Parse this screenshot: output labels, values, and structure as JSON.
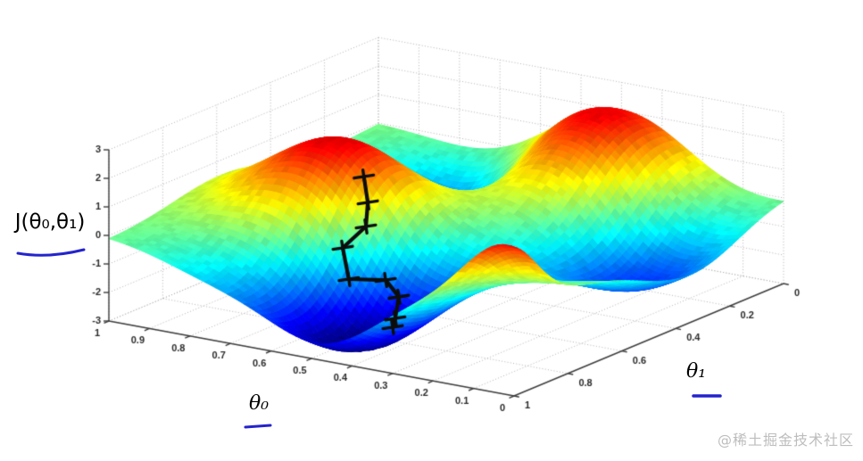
{
  "chart_data": {
    "type": "surface",
    "title": "",
    "z_axis_label": "J(θ₀,θ₁)",
    "x_axis_label": "θ₀",
    "y_axis_label": "θ₁",
    "colormap": "jet",
    "z_range": [
      -3,
      3
    ],
    "theta0_range": [
      0,
      1
    ],
    "theta1_range": [
      0,
      1
    ],
    "z_ticks": [
      3,
      2,
      1,
      0,
      -1,
      -2,
      -3
    ],
    "theta0_ticks": [
      1,
      0.9,
      0.8,
      0.7,
      0.6,
      0.5,
      0.4,
      0.3,
      0.2,
      0.1,
      0
    ],
    "theta1_ticks": [
      0,
      0.2,
      0.4,
      0.6,
      0.8,
      1
    ],
    "grid": {
      "theta0_step": 0.1,
      "theta1_step": 0.2,
      "z_step": 1
    },
    "surface_model": {
      "description": "Non-convex cost surface approximated as a sum of gaussian bumps; amplitude a at center (theta0,theta1) with spreads (sx,sy). Two red peaks, deep blue local minima.",
      "components": [
        {
          "a": 3.2,
          "theta0": 0.67,
          "theta1": 0.58,
          "sx": 0.17,
          "sy": 0.16
        },
        {
          "a": 3.1,
          "theta0": 0.41,
          "theta1": 0.13,
          "sx": 0.21,
          "sy": 0.18
        },
        {
          "a": -3.6,
          "theta0": 0.48,
          "theta1": 0.8,
          "sx": 0.14,
          "sy": 0.22
        },
        {
          "a": -2.6,
          "theta0": 0.14,
          "theta1": 0.31,
          "sx": 0.14,
          "sy": 0.2
        },
        {
          "a": -3.0,
          "theta0": 0.67,
          "theta1": 0.22,
          "sx": 0.15,
          "sy": 0.15
        },
        {
          "a": 2.3,
          "theta0": 0.02,
          "theta1": 1.02,
          "sx": 0.1,
          "sy": 0.1
        },
        {
          "a": -0.8,
          "theta0": 0.75,
          "theta1": 1.0,
          "sx": 0.13,
          "sy": 0.15
        }
      ]
    },
    "gradient_descent_path": [
      {
        "theta0": 0.501,
        "theta1": 0.804,
        "j": 2.6
      },
      {
        "theta0": 0.482,
        "theta1": 0.818,
        "j": 1.8
      },
      {
        "theta0": 0.48,
        "theta1": 0.828,
        "j": 1.0
      },
      {
        "theta0": 0.514,
        "theta1": 0.863,
        "j": 0.3
      },
      {
        "theta0": 0.469,
        "theta1": 0.908,
        "j": -0.5
      },
      {
        "theta0": 0.414,
        "theta1": 0.854,
        "j": -0.6
      },
      {
        "theta0": 0.416,
        "theta1": 0.802,
        "j": -1.4
      },
      {
        "theta0": 0.451,
        "theta1": 0.763,
        "j": -2.4
      },
      {
        "theta0": 0.466,
        "theta1": 0.75,
        "j": -2.8
      }
    ],
    "path_style": {
      "color": "#0d0d0d",
      "marker": "x"
    }
  },
  "labels": {
    "z_axis_title": "J(θ₀,θ₁)",
    "x_axis_title": "θ₀",
    "y_axis_title": "θ₁"
  },
  "annotation": {
    "underline_color": "#2424cc"
  },
  "watermark": {
    "text": "@稀土掘金技术社区",
    "color": "#bdbdbd"
  }
}
